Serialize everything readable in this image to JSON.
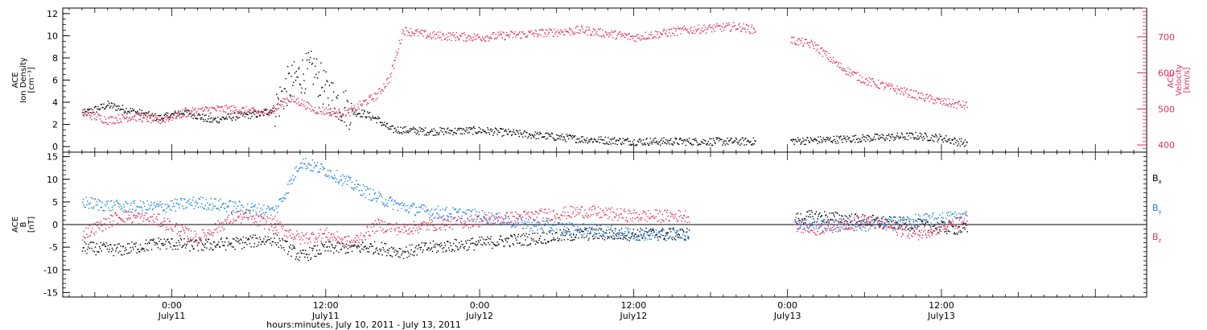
{
  "chart_data": [
    {
      "type": "scatter",
      "panel": "top",
      "left_axis": {
        "title_lines": [
          "ACE",
          "Ion Density",
          "[cm⁻³]"
        ],
        "ylim": [
          -0.5,
          12.5
        ],
        "ticks": [
          0,
          2,
          4,
          6,
          8,
          10,
          12
        ],
        "color": "#000000"
      },
      "right_axis": {
        "title_lines": [
          "ACE",
          "Velocity",
          "[km/s]"
        ],
        "ylim": [
          380,
          780
        ],
        "ticks": [
          400,
          500,
          600,
          700
        ],
        "color": "#e0305a"
      },
      "series": [
        {
          "axis": "left",
          "color": "#000000",
          "x_hours": [
            -7,
            -5,
            -3,
            -1,
            1,
            3,
            5,
            7,
            8,
            9,
            10,
            11,
            12,
            13,
            14,
            15,
            16,
            17,
            20,
            24,
            28,
            32,
            36,
            40,
            44,
            46,
            50,
            54,
            58,
            60,
            62
          ],
          "values": [
            3.0,
            3.8,
            3.2,
            2.6,
            3.2,
            2.4,
            2.8,
            3.0,
            3.5,
            5.5,
            6.5,
            7.0,
            5.0,
            4.0,
            3.2,
            3.0,
            2.5,
            1.6,
            1.4,
            1.5,
            1.1,
            0.7,
            0.5,
            0.5,
            0.5,
            0.5,
            0.6,
            0.8,
            1.0,
            0.8,
            0.3
          ],
          "gaps": [
            [
              45.5,
              48.2
            ],
            [
              62.5,
              80
            ]
          ]
        },
        {
          "axis": "right",
          "color": "#e0305a",
          "x_hours": [
            -7,
            -5,
            -3,
            -1,
            1,
            3,
            5,
            7,
            8,
            9,
            10,
            11,
            12,
            13,
            14,
            15,
            16,
            17,
            18,
            20,
            24,
            28,
            32,
            36,
            40,
            44,
            45.5,
            48.5,
            50,
            52,
            54,
            56,
            58,
            60,
            62
          ],
          "values": [
            490,
            470,
            480,
            470,
            490,
            500,
            500,
            490,
            500,
            530,
            520,
            500,
            495,
            490,
            495,
            520,
            540,
            590,
            720,
            705,
            700,
            710,
            720,
            700,
            720,
            730,
            720,
            690,
            680,
            620,
            580,
            560,
            540,
            520,
            510
          ],
          "gaps": [
            [
              45.5,
              48.2
            ],
            [
              62.5,
              80
            ]
          ]
        }
      ]
    },
    {
      "type": "scatter",
      "panel": "bottom",
      "left_axis": {
        "title_lines": [
          "ACE",
          "B",
          "[nT]"
        ],
        "ylim": [
          -16,
          16
        ],
        "ticks": [
          -15,
          -10,
          -5,
          0,
          5,
          10,
          15
        ]
      },
      "zero_line": true,
      "series": [
        {
          "name": "Bx",
          "color": "#000000",
          "x_hours": [
            -7,
            -4,
            -1,
            2,
            5,
            8,
            10,
            12,
            14,
            16,
            18,
            20,
            24,
            28,
            32,
            36,
            40,
            44,
            46,
            50,
            54,
            58,
            62
          ],
          "values": [
            -5,
            -5.5,
            -4,
            -4.5,
            -4,
            -3,
            -7,
            -5,
            -5,
            -5,
            -6,
            -5,
            -4,
            -3,
            -2,
            -2,
            -2,
            -1,
            0,
            2,
            1,
            0,
            -1
          ],
          "gaps": [
            [
              40.3,
              48.5
            ],
            [
              62.5,
              80
            ]
          ]
        },
        {
          "name": "By",
          "color": "#1a7fe0",
          "x_hours": [
            -7,
            -4,
            -1,
            2,
            5,
            8,
            9,
            10,
            12,
            14,
            16,
            18,
            20,
            24,
            28,
            32,
            36,
            40,
            44,
            46,
            50,
            54,
            58,
            62
          ],
          "values": [
            5,
            4,
            4,
            5,
            4,
            3,
            8,
            14,
            12,
            9,
            6,
            4,
            3,
            2,
            0,
            -1,
            -2,
            -2,
            -1,
            1,
            0,
            0,
            1,
            2
          ],
          "gaps": [
            [
              40.3,
              48.5
            ],
            [
              62.5,
              80
            ]
          ]
        },
        {
          "name": "Bz",
          "color": "#e0305a",
          "x_hours": [
            -7,
            -4,
            -1,
            2,
            5,
            8,
            10,
            12,
            14,
            16,
            18,
            20,
            24,
            28,
            32,
            36,
            40,
            44,
            46,
            50,
            54,
            58,
            62
          ],
          "values": [
            -2,
            2,
            1,
            -3,
            2,
            0,
            -3,
            -2,
            -4,
            0,
            -1,
            0,
            1,
            2,
            3,
            2,
            2,
            1,
            2,
            -1,
            1,
            -2,
            1
          ],
          "gaps": [
            [
              40.3,
              48.5
            ],
            [
              62.5,
              80
            ]
          ]
        }
      ],
      "legend": [
        "Bx",
        "By",
        "Bz"
      ]
    }
  ],
  "x_axis": {
    "range_hours": [
      -8.5,
      76
    ],
    "ticks": [
      {
        "hour": 0,
        "time": "0:00",
        "date": "July11"
      },
      {
        "hour": 12,
        "time": "12:00",
        "date": "July11"
      },
      {
        "hour": 24,
        "time": "0:00",
        "date": "July12"
      },
      {
        "hour": 36,
        "time": "12:00",
        "date": "July12"
      },
      {
        "hour": 48,
        "time": "0:00",
        "date": "July13"
      },
      {
        "hour": 60,
        "time": "12:00",
        "date": "July13"
      }
    ],
    "xlabel": "hours:minutes, July 10, 2011 - July 13, 2011"
  },
  "legend_labels": {
    "bx": "B",
    "bx_sub": "x",
    "by": "B",
    "by_sub": "y",
    "bz": "B",
    "bz_sub": "z"
  },
  "colors": {
    "black": "#000000",
    "blue": "#1a7fe0",
    "pink": "#e0305a"
  }
}
